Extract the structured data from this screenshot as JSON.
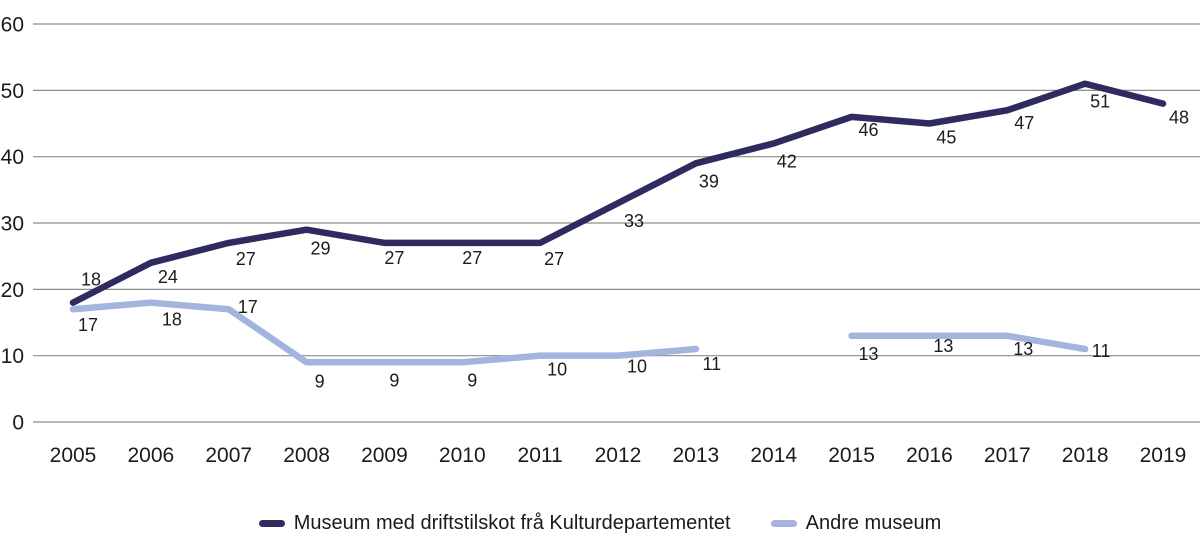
{
  "figure": {
    "background": "#ffffff",
    "grid_color": "#8c8c8c",
    "text_color": "#1b1b1b"
  },
  "chart_data": {
    "type": "line",
    "title": "",
    "xlabel": "",
    "ylabel": "",
    "categories": [
      "2005",
      "2006",
      "2007",
      "2008",
      "2009",
      "2010",
      "2011",
      "2012",
      "2013",
      "2014",
      "2015",
      "2016",
      "2017",
      "2018",
      "2019"
    ],
    "series": [
      {
        "name": "Museum med driftstilskot frå Kulturdepartementet",
        "color": "#2e2b61",
        "values": [
          18,
          24,
          27,
          29,
          27,
          27,
          27,
          33,
          39,
          42,
          46,
          45,
          47,
          51,
          48
        ]
      },
      {
        "name": "Andre museum",
        "color": "#a5b4df",
        "values": [
          17,
          18,
          17,
          9,
          9,
          9,
          10,
          10,
          11,
          null,
          13,
          13,
          13,
          11,
          null
        ]
      }
    ],
    "ylim": [
      0,
      60
    ],
    "yticks": [
      0,
      10,
      20,
      30,
      40,
      50,
      60
    ],
    "grid": "horizontal",
    "legend_position": "bottom",
    "data_labels": true
  }
}
